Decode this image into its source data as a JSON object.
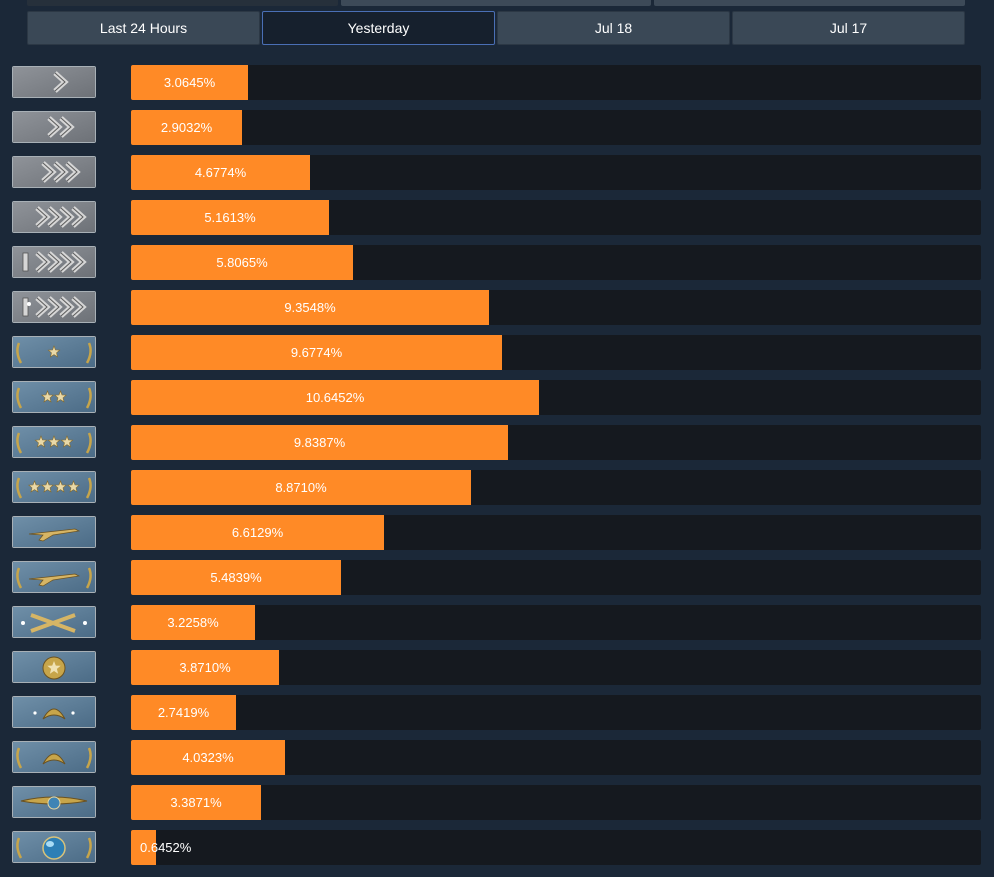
{
  "tabs": [
    {
      "label": "Last 24 Hours",
      "active": false
    },
    {
      "label": "Yesterday",
      "active": true
    },
    {
      "label": "Jul 18",
      "active": false
    },
    {
      "label": "Jul 17",
      "active": false
    }
  ],
  "colors": {
    "page_bg": "#1b2838",
    "bar_fill": "#ff8a26",
    "bar_track": "#15191f",
    "tab_bg": "#3a4856",
    "tab_active_bg": "#16202d",
    "tab_active_border": "#4a6fb5"
  },
  "ranks": [
    {
      "icon": "silver-1-rank-icon",
      "value": 3.0645,
      "label": "3.0645%"
    },
    {
      "icon": "silver-2-rank-icon",
      "value": 2.9032,
      "label": "2.9032%"
    },
    {
      "icon": "silver-3-rank-icon",
      "value": 4.6774,
      "label": "4.6774%"
    },
    {
      "icon": "silver-4-rank-icon",
      "value": 5.1613,
      "label": "5.1613%"
    },
    {
      "icon": "silver-elite-rank-icon",
      "value": 5.8065,
      "label": "5.8065%"
    },
    {
      "icon": "silver-elite-master-rank-icon",
      "value": 9.3548,
      "label": "9.3548%"
    },
    {
      "icon": "gold-nova-1-rank-icon",
      "value": 9.6774,
      "label": "9.6774%"
    },
    {
      "icon": "gold-nova-2-rank-icon",
      "value": 10.6452,
      "label": "10.6452%"
    },
    {
      "icon": "gold-nova-3-rank-icon",
      "value": 9.8387,
      "label": "9.8387%"
    },
    {
      "icon": "gold-nova-master-rank-icon",
      "value": 8.871,
      "label": "8.8710%"
    },
    {
      "icon": "master-guardian-1-rank-icon",
      "value": 6.6129,
      "label": "6.6129%"
    },
    {
      "icon": "master-guardian-2-rank-icon",
      "value": 5.4839,
      "label": "5.4839%"
    },
    {
      "icon": "master-guardian-elite-rank-icon",
      "value": 3.2258,
      "label": "3.2258%"
    },
    {
      "icon": "distinguished-master-guardian-rank-icon",
      "value": 3.871,
      "label": "3.8710%"
    },
    {
      "icon": "legendary-eagle-rank-icon",
      "value": 2.7419,
      "label": "2.7419%"
    },
    {
      "icon": "legendary-eagle-master-rank-icon",
      "value": 4.0323,
      "label": "4.0323%"
    },
    {
      "icon": "supreme-master-first-class-rank-icon",
      "value": 3.3871,
      "label": "3.3871%"
    },
    {
      "icon": "global-elite-rank-icon",
      "value": 0.6452,
      "label": "0.6452%"
    }
  ],
  "scale_max_percent": 22.2
}
